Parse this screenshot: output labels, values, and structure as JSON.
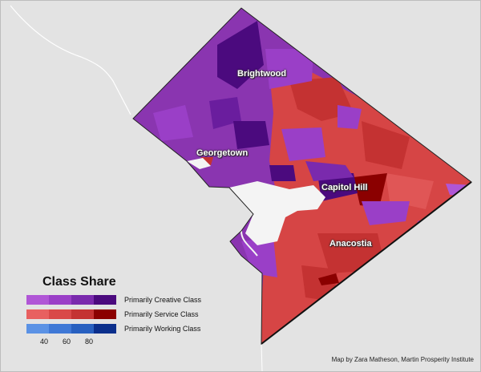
{
  "map": {
    "places": [
      {
        "name": "Brightwood"
      },
      {
        "name": "Georgetown"
      },
      {
        "name": "Capitol Hill"
      },
      {
        "name": "Anacostia"
      }
    ],
    "colors": {
      "background": "#e3e3e3",
      "creative_base": "#8a35b0",
      "service_base": "#d64545",
      "working_base": "#3b6fd6",
      "river": "#f4f4f4"
    }
  },
  "legend": {
    "title": "Class Share",
    "rows": [
      {
        "label": "Primarily Creative Class",
        "colors": [
          "#b056d6",
          "#9a3fc7",
          "#7a2aad",
          "#4b0a7e"
        ]
      },
      {
        "label": "Primarily Service Class",
        "colors": [
          "#e86060",
          "#d94848",
          "#c43232",
          "#8b0000"
        ]
      },
      {
        "label": "Primarily Working Class",
        "colors": [
          "#5b92e5",
          "#3f78d6",
          "#2860c0",
          "#0b2f8c"
        ]
      }
    ],
    "ticks": [
      "40",
      "60",
      "80"
    ]
  },
  "credit": "Map by Zara Matheson, Martin Prosperity Institute"
}
